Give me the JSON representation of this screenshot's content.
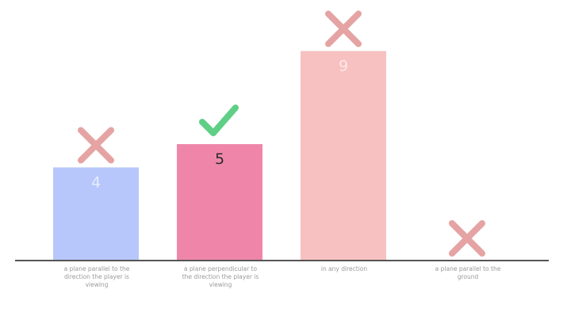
{
  "chart_data": {
    "type": "bar",
    "categories": [
      "a plane parallel to the direction the player is viewing",
      "a plane perpendicular to the direction the player is viewing",
      "in any direction",
      "a plane parallel to the ground"
    ],
    "values": [
      4,
      5,
      9,
      0
    ],
    "value_labels": [
      "4",
      "5",
      "9",
      ""
    ],
    "marks": [
      "cross",
      "check",
      "cross",
      "cross"
    ],
    "ylim": [
      0,
      10
    ],
    "grid": false,
    "legend": "none",
    "title": "",
    "xlabel": "",
    "ylabel": "",
    "colors": {
      "bars": [
        "#b7c7fb",
        "#ef86aa",
        "#f7c1c1",
        "#f7c1c1"
      ],
      "value_text": [
        "#e6ecff",
        "#2b2b2b",
        "#fde7e7",
        "#fde7e7"
      ],
      "cross": "#e5a3a3",
      "check": "#5fcf86",
      "axis": "#555555"
    }
  }
}
